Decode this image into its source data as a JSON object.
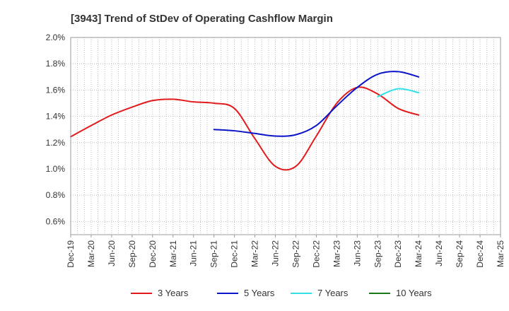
{
  "chart_data": {
    "type": "line",
    "title": "[3943]  Trend of StDev of Operating Cashflow Margin",
    "xlabel": "",
    "ylabel": "",
    "ylim": [
      0.005,
      0.02
    ],
    "y_ticks": [
      "2.0%",
      "1.8%",
      "1.6%",
      "1.4%",
      "1.2%",
      "1.0%",
      "0.8%",
      "0.6%"
    ],
    "y_tick_values": [
      0.02,
      0.018,
      0.016,
      0.014,
      0.012,
      0.01,
      0.008,
      0.006
    ],
    "categories": [
      "Dec-19",
      "Mar-20",
      "Jun-20",
      "Sep-20",
      "Dec-20",
      "Mar-21",
      "Jun-21",
      "Sep-21",
      "Dec-21",
      "Mar-22",
      "Jun-22",
      "Sep-22",
      "Dec-22",
      "Mar-23",
      "Jun-23",
      "Sep-23",
      "Dec-23",
      "Mar-24",
      "Jun-24",
      "Sep-24",
      "Dec-24",
      "Mar-25"
    ],
    "grid": true,
    "legend_position": "bottom",
    "series": [
      {
        "name": "3 Years",
        "color": "#e31a1c",
        "values": [
          0.01245,
          0.0133,
          0.0141,
          0.0147,
          0.0152,
          0.0153,
          0.0151,
          0.015,
          0.0146,
          0.0123,
          0.0102,
          0.0102,
          0.0125,
          0.015,
          0.0162,
          0.0157,
          0.0146,
          0.0141,
          null,
          null,
          null,
          null
        ]
      },
      {
        "name": "5 Years",
        "color": "#0a14c8",
        "values": [
          null,
          null,
          null,
          null,
          null,
          null,
          null,
          0.013,
          0.0129,
          0.0127,
          0.0125,
          0.0126,
          0.0133,
          0.0148,
          0.0162,
          0.0172,
          0.0174,
          0.017,
          null,
          null,
          null,
          null
        ]
      },
      {
        "name": "7 Years",
        "color": "#33e0e8",
        "values": [
          null,
          null,
          null,
          null,
          null,
          null,
          null,
          null,
          null,
          null,
          null,
          null,
          null,
          null,
          null,
          0.0155,
          0.0161,
          0.0158,
          null,
          null,
          null,
          null
        ]
      },
      {
        "name": "10 Years",
        "color": "#1a7a1a",
        "values": [
          null,
          null,
          null,
          null,
          null,
          null,
          null,
          null,
          null,
          null,
          null,
          null,
          null,
          null,
          null,
          null,
          null,
          null,
          null,
          null,
          null,
          null
        ]
      }
    ]
  }
}
